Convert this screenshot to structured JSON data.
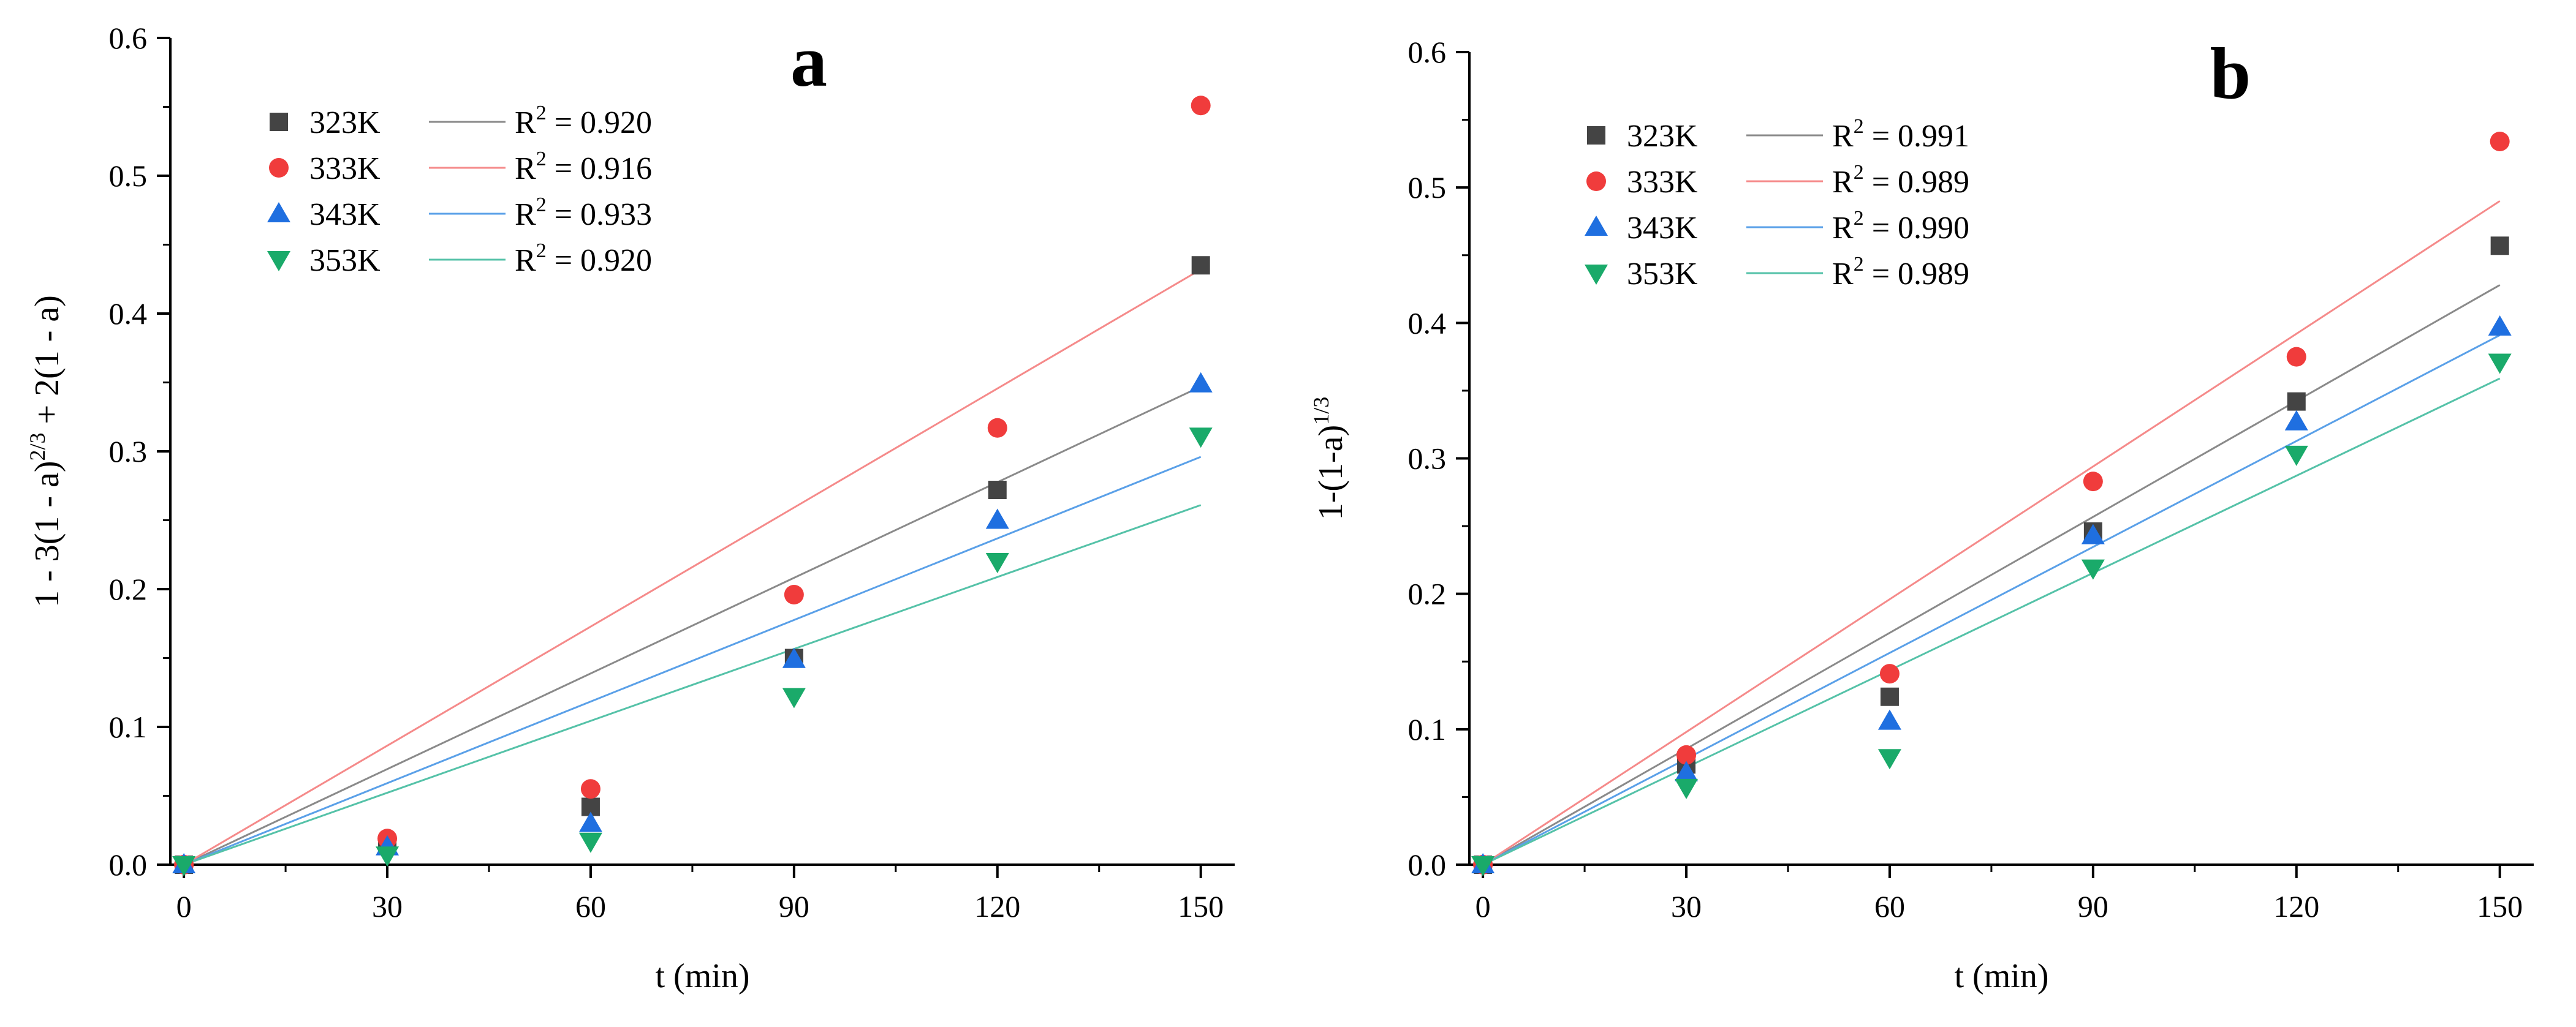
{
  "chart_data": [
    {
      "type": "scatter",
      "title": "a",
      "xlabel": "t (min)",
      "ylabel": "1 - 3(1 - a)^(2/3) + 2(1 - a)",
      "ylabel_base": "1 - 3(1 - a)",
      "ylabel_exp": "2/3",
      "ylabel_tail": " + 2(1 - a)",
      "xlim": [
        -2,
        155
      ],
      "ylim": [
        0,
        0.6
      ],
      "xticks": [
        0,
        30,
        60,
        90,
        120,
        150
      ],
      "xtick_labels": [
        "0",
        "30",
        "60",
        "90",
        "120",
        "150"
      ],
      "yticks": [
        0.0,
        0.1,
        0.2,
        0.3,
        0.4,
        0.5,
        0.6
      ],
      "ytick_labels": [
        "0.0",
        "0.1",
        "0.2",
        "0.3",
        "0.4",
        "0.5",
        "0.6"
      ],
      "legend_position": "top-left",
      "series": [
        {
          "name": "323K",
          "r2_label": "R",
          "r2_exp": "2",
          "r2_value": " = 0.920",
          "marker": "square",
          "color": "#444444",
          "line_color": "#8a8a8a",
          "x": [
            0,
            30,
            60,
            90,
            120,
            150
          ],
          "y": [
            0.0,
            0.015,
            0.042,
            0.15,
            0.272,
            0.435
          ],
          "fit": [
            [
              0,
              0.0
            ],
            [
              150,
              0.347
            ]
          ]
        },
        {
          "name": "333K",
          "r2_label": "R",
          "r2_exp": "2",
          "r2_value": " = 0.916",
          "marker": "circle",
          "color": "#f03c3c",
          "line_color": "#f58a8a",
          "x": [
            0,
            30,
            60,
            90,
            120,
            150
          ],
          "y": [
            0.0,
            0.019,
            0.055,
            0.196,
            0.317,
            0.551
          ],
          "fit": [
            [
              0,
              0.0
            ],
            [
              150,
              0.432
            ]
          ]
        },
        {
          "name": "343K",
          "r2_label": "R",
          "r2_exp": "2",
          "r2_value": " = 0.933",
          "marker": "triangle-up",
          "color": "#1f6fe0",
          "line_color": "#5aa0e8",
          "x": [
            0,
            30,
            60,
            90,
            120,
            150
          ],
          "y": [
            0.0,
            0.013,
            0.03,
            0.149,
            0.25,
            0.349
          ],
          "fit": [
            [
              0,
              0.0
            ],
            [
              150,
              0.296
            ]
          ]
        },
        {
          "name": "353K",
          "r2_label": "R",
          "r2_exp": "2",
          "r2_value": " = 0.920",
          "marker": "triangle-down",
          "color": "#1aaa6a",
          "line_color": "#55c2a8",
          "x": [
            0,
            30,
            60,
            90,
            120,
            150
          ],
          "y": [
            0.0,
            0.007,
            0.017,
            0.122,
            0.22,
            0.311
          ],
          "fit": [
            [
              0,
              0.0
            ],
            [
              150,
              0.261
            ]
          ]
        }
      ]
    },
    {
      "type": "scatter",
      "title": "b",
      "xlabel": "t (min)",
      "ylabel": "1-(1-a)^(1/3)",
      "ylabel_base": "1-(1-a)",
      "ylabel_exp": "1/3",
      "ylabel_tail": "",
      "xlim": [
        -2,
        155
      ],
      "ylim": [
        0,
        0.6
      ],
      "xticks": [
        0,
        30,
        60,
        90,
        120,
        150
      ],
      "xtick_labels": [
        "0",
        "30",
        "60",
        "90",
        "120",
        "150"
      ],
      "yticks": [
        0.0,
        0.1,
        0.2,
        0.3,
        0.4,
        0.5,
        0.6
      ],
      "ytick_labels": [
        "0.0",
        "0.1",
        "0.2",
        "0.3",
        "0.4",
        "0.5",
        "0.6"
      ],
      "legend_position": "top-left",
      "series": [
        {
          "name": "323K",
          "r2_label": "R",
          "r2_exp": "2",
          "r2_value": " = 0.991",
          "marker": "square",
          "color": "#444444",
          "line_color": "#8a8a8a",
          "x": [
            0,
            30,
            60,
            90,
            120,
            150
          ],
          "y": [
            0.0,
            0.074,
            0.124,
            0.246,
            0.342,
            0.457
          ],
          "fit": [
            [
              0,
              0.0
            ],
            [
              150,
              0.428
            ]
          ]
        },
        {
          "name": "333K",
          "r2_label": "R",
          "r2_exp": "2",
          "r2_value": " = 0.989",
          "marker": "circle",
          "color": "#f03c3c",
          "line_color": "#f58a8a",
          "x": [
            0,
            30,
            60,
            90,
            120,
            150
          ],
          "y": [
            0.0,
            0.081,
            0.141,
            0.283,
            0.375,
            0.534
          ],
          "fit": [
            [
              0,
              0.0
            ],
            [
              150,
              0.49
            ]
          ]
        },
        {
          "name": "343K",
          "r2_label": "R",
          "r2_exp": "2",
          "r2_value": " = 0.990",
          "marker": "triangle-up",
          "color": "#1f6fe0",
          "line_color": "#5aa0e8",
          "x": [
            0,
            30,
            60,
            90,
            120,
            150
          ],
          "y": [
            0.0,
            0.068,
            0.106,
            0.243,
            0.327,
            0.397
          ],
          "fit": [
            [
              0,
              0.0
            ],
            [
              150,
              0.391
            ]
          ]
        },
        {
          "name": "353K",
          "r2_label": "R",
          "r2_exp": "2",
          "r2_value": " = 0.989",
          "marker": "triangle-down",
          "color": "#1aaa6a",
          "line_color": "#55c2a8",
          "x": [
            0,
            30,
            60,
            90,
            120,
            150
          ],
          "y": [
            0.0,
            0.057,
            0.079,
            0.219,
            0.303,
            0.371
          ],
          "fit": [
            [
              0,
              0.0
            ],
            [
              150,
              0.359
            ]
          ]
        }
      ]
    }
  ]
}
